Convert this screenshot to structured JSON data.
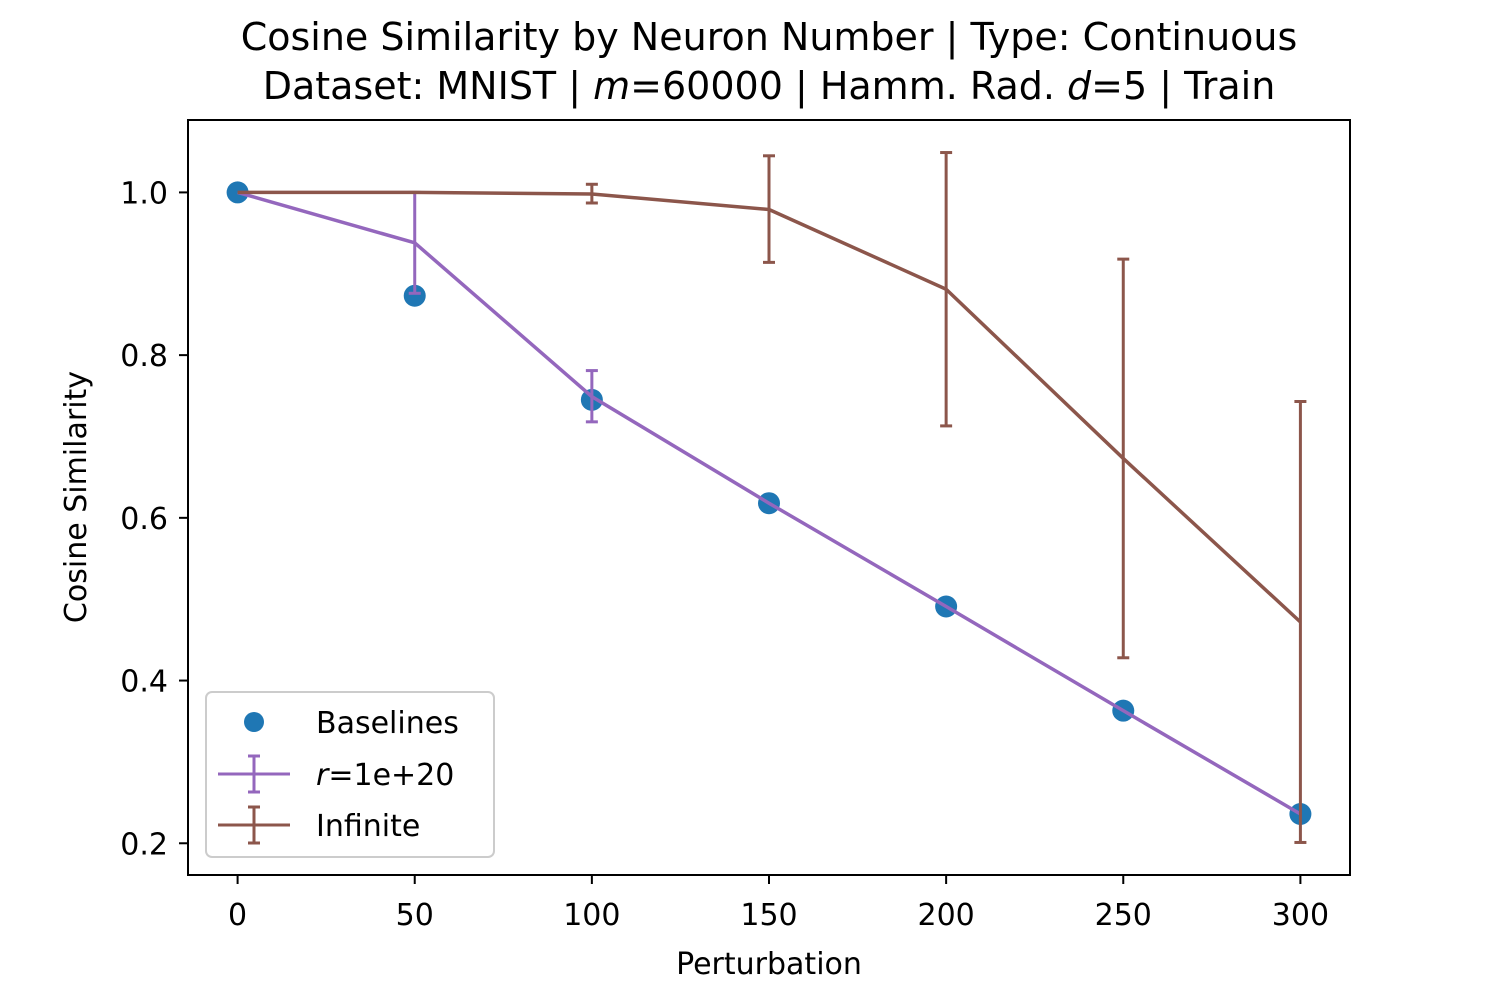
{
  "chart_data": {
    "type": "line",
    "title_line1": "Cosine Similarity by Neuron Number | Type: Continuous",
    "title_line2": {
      "part1": "Dataset: MNIST | ",
      "m_symbol": "m",
      "part2": "=60000 | Hamm. Rad. ",
      "d_symbol": "d",
      "part3": "=5 | Train"
    },
    "xlabel": "Perturbation",
    "ylabel": "Cosine Similarity",
    "xlim": [
      -14,
      314
    ],
    "ylim": [
      0.161,
      1.089
    ],
    "x_ticks": [
      0,
      50,
      100,
      150,
      200,
      250,
      300
    ],
    "y_ticks": [
      0.2,
      0.4,
      0.6,
      0.8,
      1.0
    ],
    "y_tick_labels": [
      "0.2",
      "0.4",
      "0.6",
      "0.8",
      "1.0"
    ],
    "legend_position": "lower-left",
    "baselines": {
      "name": "Baselines",
      "color": "#1f77b4",
      "x": [
        0,
        50,
        100,
        150,
        200,
        250,
        300
      ],
      "y": [
        1.0,
        0.873,
        0.745,
        0.618,
        0.491,
        0.363,
        0.236
      ]
    },
    "series": [
      {
        "name_symbol": "r",
        "name_rest": "=1e+20",
        "color": "#9467bd",
        "x": [
          0,
          50,
          100,
          150,
          200,
          250,
          300
        ],
        "y": [
          1.0,
          0.938,
          0.749,
          0.618,
          0.491,
          0.363,
          0.236
        ],
        "err_low": [
          1.0,
          0.876,
          0.718,
          0.618,
          0.491,
          0.363,
          0.236
        ],
        "err_high": [
          1.0,
          1.0,
          0.781,
          0.618,
          0.491,
          0.363,
          0.236
        ]
      },
      {
        "name": "Infinite",
        "color": "#8c564b",
        "x": [
          0,
          50,
          100,
          150,
          200,
          250,
          300
        ],
        "y": [
          1.0,
          1.0,
          0.998,
          0.979,
          0.881,
          0.673,
          0.472
        ],
        "err_low": [
          1.0,
          1.0,
          0.987,
          0.914,
          0.713,
          0.428,
          0.201
        ],
        "err_high": [
          1.0,
          1.0,
          1.01,
          1.045,
          1.049,
          0.918,
          0.743
        ]
      }
    ]
  }
}
